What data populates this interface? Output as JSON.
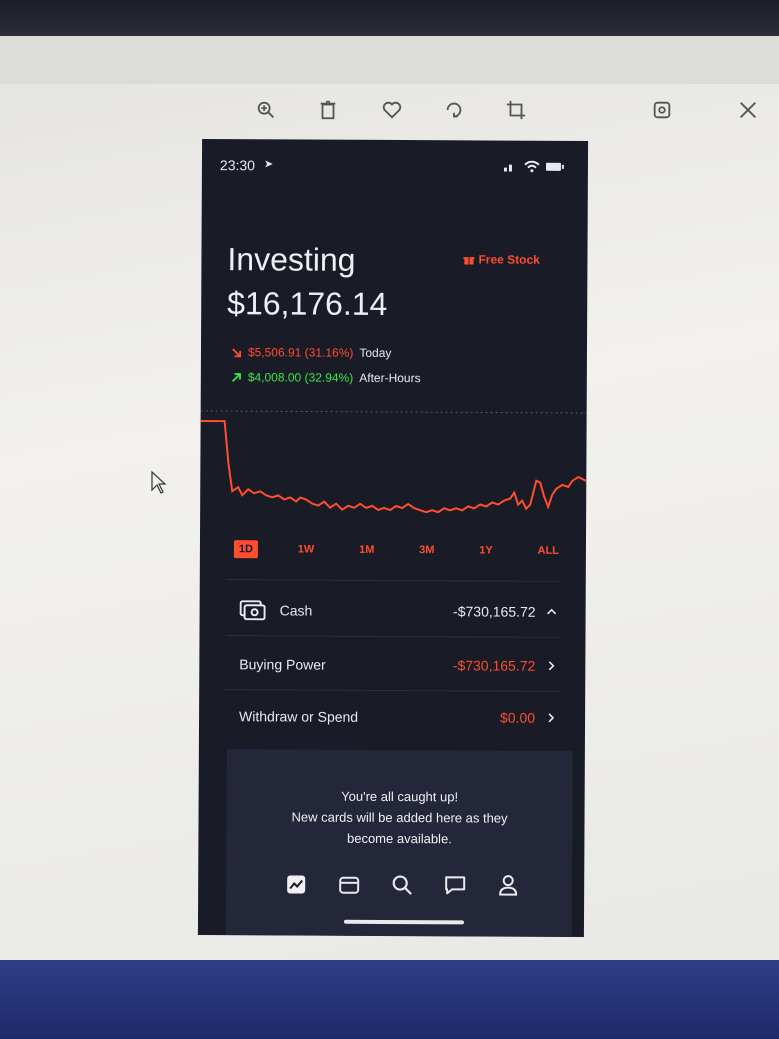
{
  "status": {
    "time": "23:30"
  },
  "header": {
    "title": "Investing",
    "free_stock": "Free Stock",
    "balance": "$16,176.14"
  },
  "changes": {
    "today": {
      "amount": "$5,506.91 (31.16%)",
      "label": "Today"
    },
    "after_hours": {
      "amount": "$4,008.00 (32.94%)",
      "label": "After-Hours"
    }
  },
  "ranges": [
    "1D",
    "1W",
    "1M",
    "3M",
    "1Y",
    "ALL"
  ],
  "active_range": "1D",
  "account": {
    "cash": {
      "label": "Cash",
      "value": "-$730,165.72"
    },
    "buying_power": {
      "label": "Buying Power",
      "value": "-$730,165.72"
    },
    "withdraw": {
      "label": "Withdraw or Spend",
      "value": "$0.00"
    }
  },
  "cards": {
    "line1": "You're all caught up!",
    "line2": "New cards will be added here as they",
    "line3": "become available."
  },
  "nav_icons": [
    "portfolio-icon",
    "wallet-icon",
    "search-icon",
    "messages-icon",
    "account-icon"
  ],
  "colors": {
    "accent": "#ff4d2e",
    "positive": "#38e84a",
    "background": "#191b27"
  }
}
